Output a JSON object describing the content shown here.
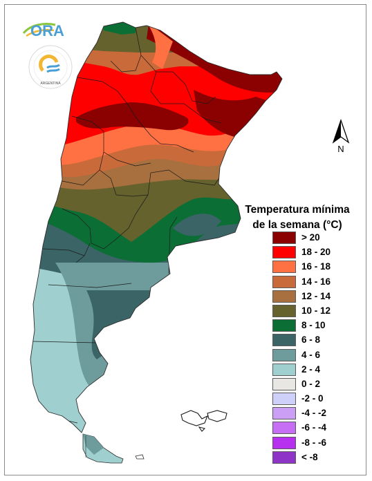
{
  "logos": {
    "ora_text": "ORA",
    "smn_ring_text": "SERVICIO METEOROLÓGICO NACIONAL",
    "smn_country": "ARGENTINA"
  },
  "north_arrow": {
    "label": "N"
  },
  "legend": {
    "title_line1": "Temperatura mínima",
    "title_line2": "de la semana (°C)",
    "items": [
      {
        "label": "> 20",
        "color": "#8b0000"
      },
      {
        "label": "18 - 20",
        "color": "#ff0000"
      },
      {
        "label": "16 - 18",
        "color": "#ff7043"
      },
      {
        "label": "14 - 16",
        "color": "#c96a3a"
      },
      {
        "label": "12 - 14",
        "color": "#a8703f"
      },
      {
        "label": "10 - 12",
        "color": "#65622e"
      },
      {
        "label": "8 - 10",
        "color": "#0b6e34"
      },
      {
        "label": "6 - 8",
        "color": "#3b6467"
      },
      {
        "label": "4 - 6",
        "color": "#6e9b9b"
      },
      {
        "label": "2 - 4",
        "color": "#9fd0cf"
      },
      {
        "label": "0 - 2",
        "color": "#e9e7e4"
      },
      {
        "label": "-2 - 0",
        "color": "#cfd0fa"
      },
      {
        "label": "-4 - -2",
        "color": "#cc9ff7"
      },
      {
        "label": "-6 - -4",
        "color": "#c66ff5"
      },
      {
        "label": "-8 - -6",
        "color": "#b830ef"
      },
      {
        "label": "< -8",
        "color": "#8e35c8"
      }
    ]
  }
}
